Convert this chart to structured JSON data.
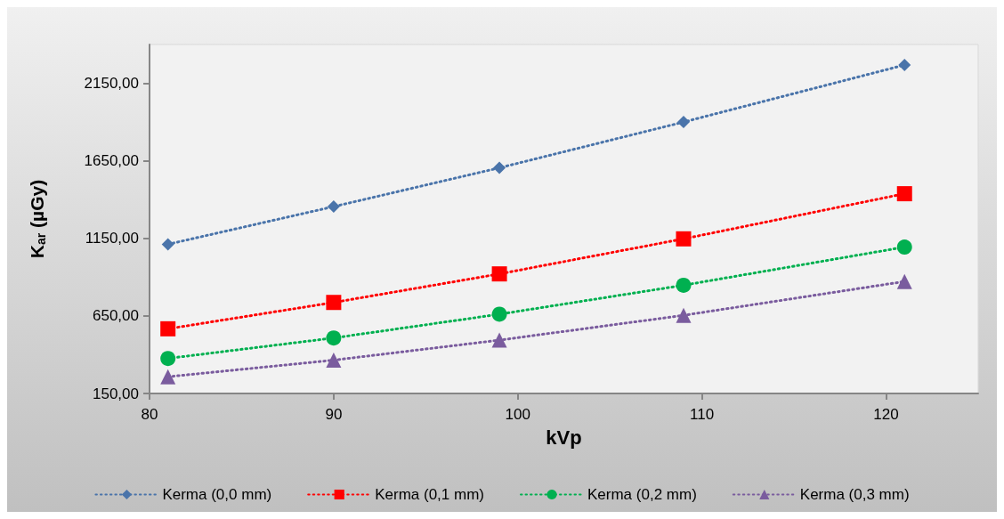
{
  "chart_data": {
    "type": "line",
    "xlabel": "kVp",
    "ylabel": "K$_{ar}$ (µGy)",
    "x": [
      81,
      90,
      99,
      109,
      121
    ],
    "xlim": [
      80,
      125
    ],
    "xticks": [
      80,
      90,
      100,
      110,
      120
    ],
    "ylim": [
      150,
      2400
    ],
    "yticks": [
      {
        "value": 150,
        "label": "150,00"
      },
      {
        "value": 650,
        "label": "650,00"
      },
      {
        "value": 1150,
        "label": "1150,00"
      },
      {
        "value": 1650,
        "label": "1650,00"
      },
      {
        "value": 2150,
        "label": "2150,00"
      }
    ],
    "grid": false,
    "legend": "bottom",
    "line_style": "dotted",
    "series": [
      {
        "name": "Kerma (0,0 mm)",
        "color": "#4a74aa",
        "marker": "diamond",
        "values": [
          1112,
          1355,
          1605,
          1900,
          2268
        ]
      },
      {
        "name": "Kerma (0,1 mm)",
        "color": "#ff0000",
        "marker": "square",
        "values": [
          567,
          737,
          921,
          1147,
          1438
        ]
      },
      {
        "name": "Kerma (0,2 mm)",
        "color": "#00b050",
        "marker": "circle",
        "values": [
          376,
          508,
          661,
          848,
          1094
        ]
      },
      {
        "name": "Kerma (0,3 mm)",
        "color": "#7a5c9e",
        "marker": "triangle",
        "values": [
          258,
          365,
          494,
          654,
          872
        ]
      }
    ]
  }
}
